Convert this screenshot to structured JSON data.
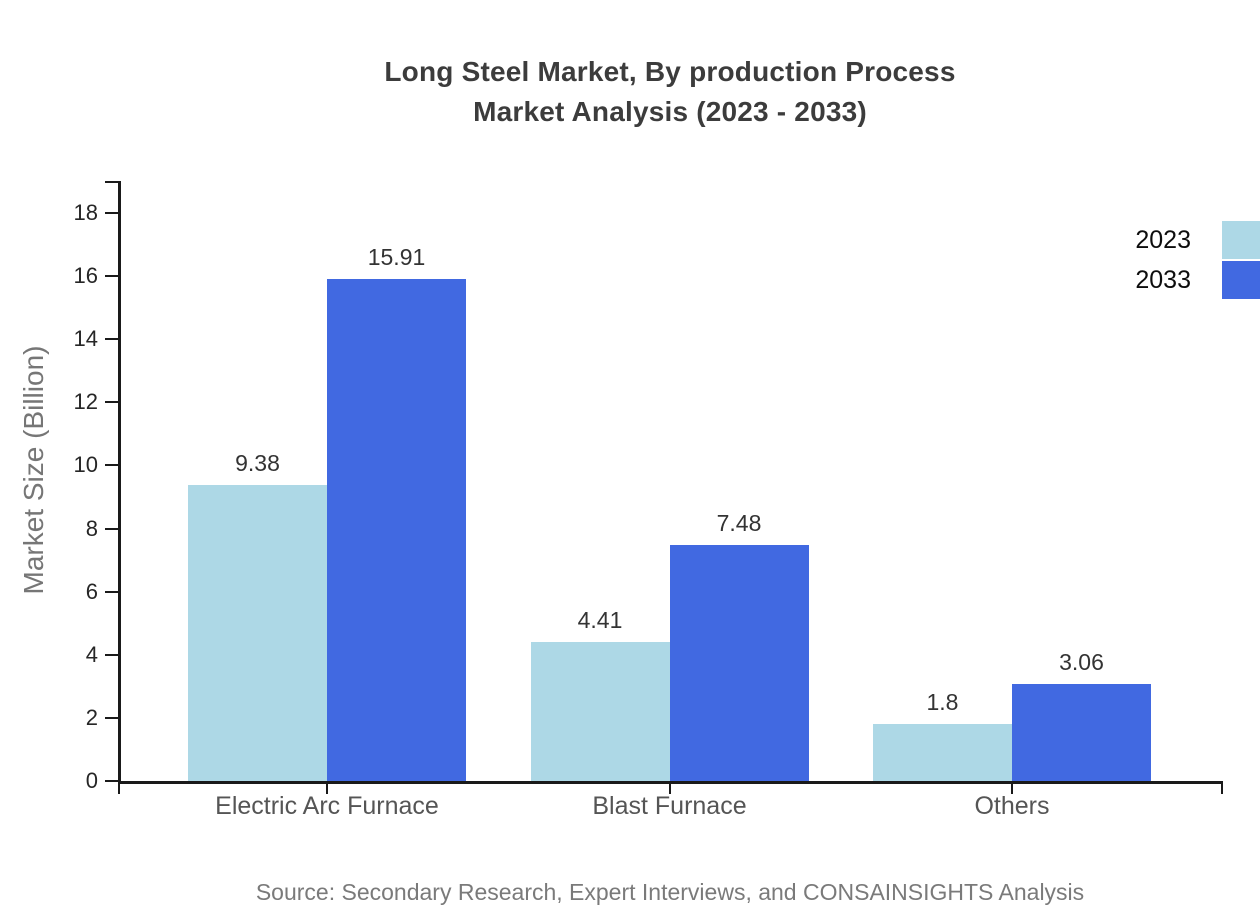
{
  "title": {
    "line1": "Long Steel Market, By production Process",
    "line2": "Market Analysis (2023 - 2033)"
  },
  "chart_data": {
    "type": "bar",
    "categories": [
      "Electric Arc Furnace",
      "Blast Furnace",
      "Others"
    ],
    "series": [
      {
        "name": "2023",
        "color": "#ADD8E6",
        "values": [
          9.38,
          4.41,
          1.8
        ]
      },
      {
        "name": "2033",
        "color": "#4169E1",
        "values": [
          15.91,
          7.48,
          3.06
        ]
      }
    ],
    "value_labels": {
      "2023": [
        "9.38",
        "4.41",
        "1.8"
      ],
      "2033": [
        "15.91",
        "7.48",
        "3.06"
      ]
    },
    "title": "Long Steel Market, By production Process Market Analysis (2023 - 2033)",
    "xlabel": "",
    "ylabel": "Market Size (Billion)",
    "ylim": [
      0,
      18
    ],
    "ytick_step": 2,
    "ytick_labels": [
      "0",
      "2",
      "4",
      "6",
      "8",
      "10",
      "12",
      "14",
      "16",
      "18"
    ],
    "grid": false,
    "legend_position": "top-right"
  },
  "source": "Source: Secondary Research, Expert Interviews, and CONSAINSIGHTS Analysis",
  "colors": {
    "series_2023": "#ADD8E6",
    "series_2033": "#4169E1",
    "axis": "#1a1a1a",
    "title_text": "#3c3c3c",
    "value_text": "#333333",
    "category_text": "#555555",
    "ytick_text": "#262626",
    "ylabel_text": "#767676",
    "source_text": "#7a7a7a"
  }
}
